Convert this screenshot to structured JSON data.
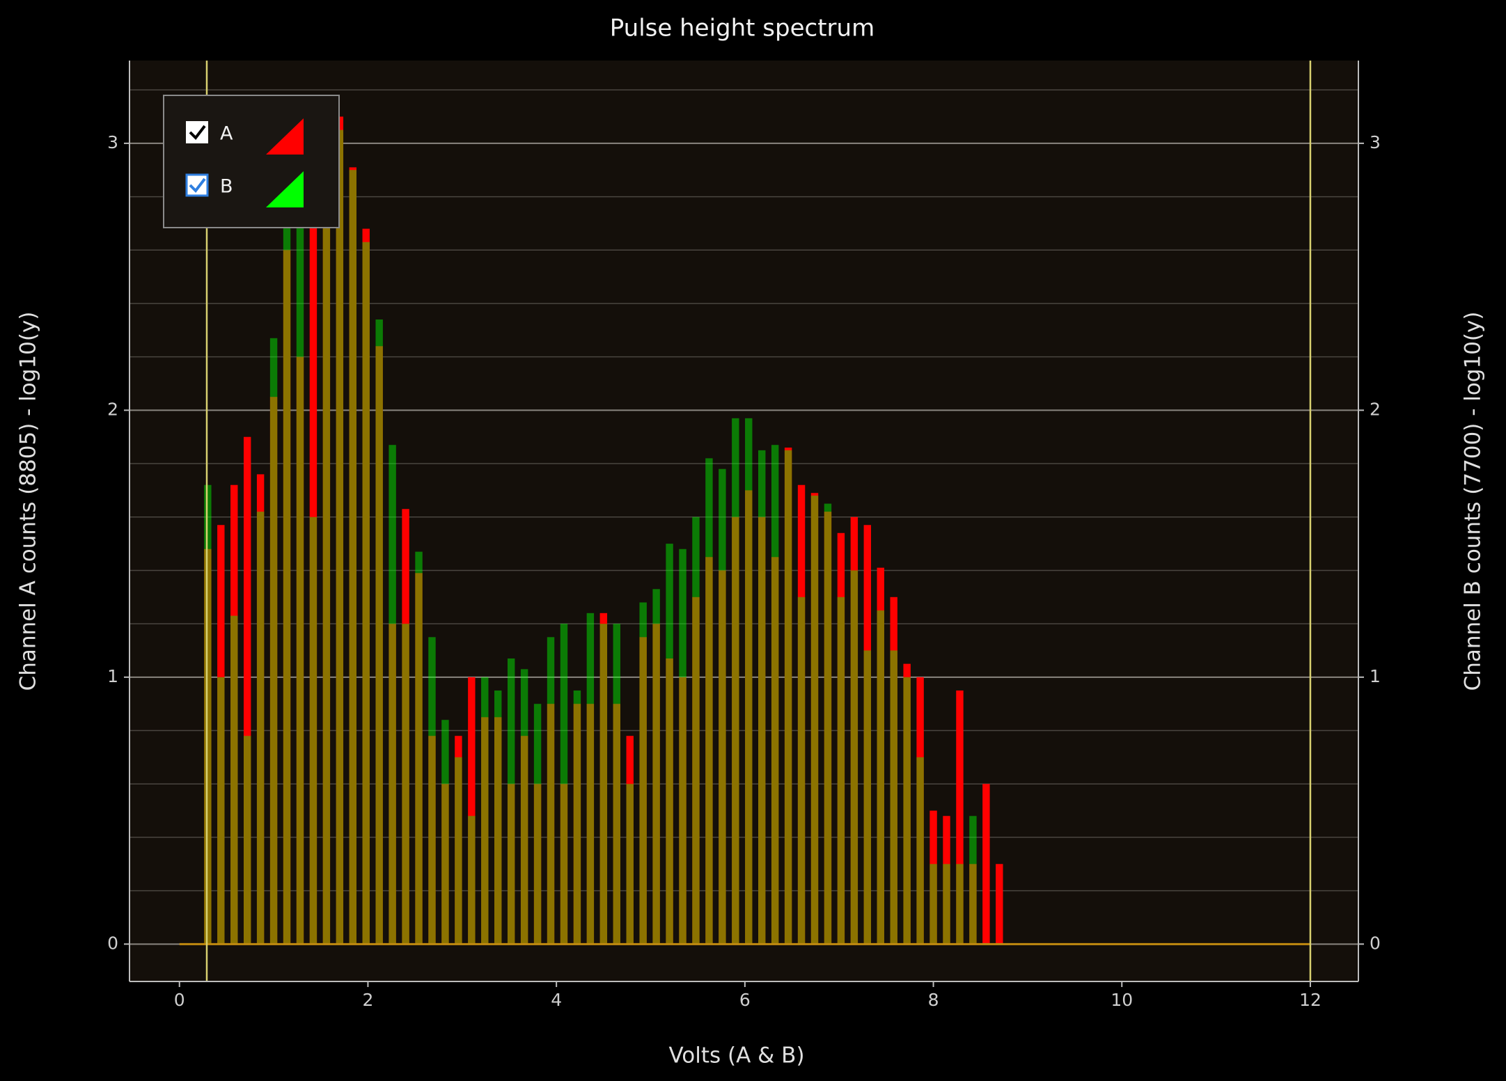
{
  "chart_data": {
    "type": "bar",
    "title": "Pulse height spectrum",
    "x_label": "Volts (A & B)",
    "y_label": "Channel A counts (8805) - log10(y)",
    "y2_label": "Channel B counts (7700) - log10(y)",
    "x": [
      0.3,
      0.44,
      0.58,
      0.72,
      0.86,
      1.0,
      1.14,
      1.28,
      1.42,
      1.56,
      1.7,
      1.84,
      1.98,
      2.12,
      2.26,
      2.4,
      2.54,
      2.68,
      2.82,
      2.96,
      3.1,
      3.24,
      3.38,
      3.52,
      3.66,
      3.8,
      3.94,
      4.08,
      4.22,
      4.36,
      4.5,
      4.64,
      4.78,
      4.92,
      5.06,
      5.2,
      5.34,
      5.48,
      5.62,
      5.76,
      5.9,
      6.04,
      6.18,
      6.32,
      6.46,
      6.6,
      6.74,
      6.88,
      7.02,
      7.16,
      7.3,
      7.44,
      7.58,
      7.72,
      7.86,
      8.0,
      8.14,
      8.28,
      8.42,
      8.56,
      8.7
    ],
    "series": [
      {
        "name": "A",
        "color": "#ff0000",
        "values": [
          1.48,
          1.57,
          1.72,
          1.9,
          1.76,
          2.05,
          2.6,
          2.2,
          2.96,
          3.15,
          3.1,
          2.91,
          2.68,
          2.24,
          1.2,
          1.63,
          1.39,
          0.78,
          0.6,
          0.78,
          1.0,
          0.85,
          0.85,
          0.6,
          0.78,
          0.6,
          0.9,
          0.6,
          0.9,
          0.9,
          1.24,
          0.9,
          0.78,
          1.15,
          1.2,
          1.07,
          1.0,
          1.3,
          1.45,
          1.4,
          1.6,
          1.7,
          1.6,
          1.45,
          1.86,
          1.72,
          1.69,
          1.62,
          1.54,
          1.6,
          1.57,
          1.41,
          1.3,
          1.05,
          1.0,
          0.5,
          0.48,
          0.95,
          0.3,
          0.6,
          0.3
        ]
      },
      {
        "name": "B",
        "color": "#00ff00",
        "axis": "y2",
        "values": [
          1.72,
          1.0,
          1.23,
          0.78,
          1.62,
          2.27,
          2.74,
          2.94,
          1.6,
          3.05,
          3.05,
          2.9,
          2.63,
          2.34,
          1.87,
          1.2,
          1.47,
          1.15,
          0.84,
          0.7,
          0.48,
          1.0,
          0.95,
          1.07,
          1.03,
          0.9,
          1.15,
          1.2,
          0.95,
          1.24,
          1.2,
          1.2,
          0.6,
          1.28,
          1.33,
          1.5,
          1.48,
          1.6,
          1.82,
          1.78,
          1.97,
          1.97,
          1.85,
          1.87,
          1.85,
          1.3,
          1.68,
          1.65,
          1.3,
          1.4,
          1.1,
          1.25,
          1.1,
          1.0,
          0.7,
          0.3,
          0.3,
          0.3,
          0.48,
          0,
          0
        ]
      }
    ],
    "xlim": [
      -0.53,
      12.51
    ],
    "xticks": [
      0,
      2,
      4,
      6,
      8,
      10,
      12
    ],
    "ylim": [
      -0.14,
      3.31
    ],
    "yticks": [
      0,
      1,
      2,
      3
    ],
    "y2lim": [
      -0.14,
      3.31
    ],
    "y2ticks": [
      0,
      1,
      2,
      3
    ],
    "minor_yticks": [
      0.2,
      0.4,
      0.6,
      0.8,
      1.2,
      1.4,
      1.6,
      1.8,
      2.2,
      2.4,
      2.6,
      2.8,
      3.2
    ],
    "markers": [
      0.29,
      12
    ],
    "grid": true,
    "legend": "upper left"
  }
}
